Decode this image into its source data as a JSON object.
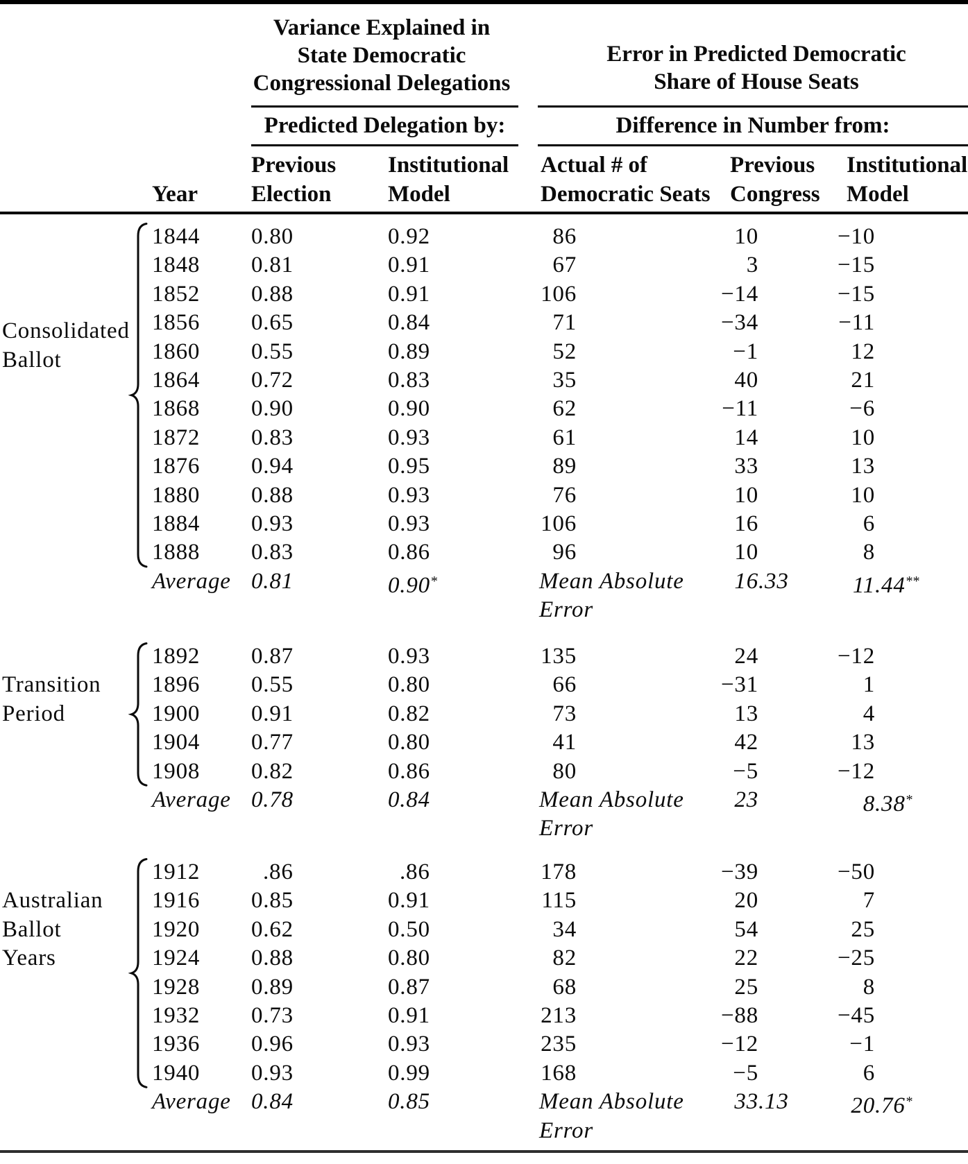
{
  "page": {
    "background": "#ffffff",
    "text_color": "#0b0b0b",
    "rule_color": "#000000"
  },
  "table": {
    "spanners": {
      "left": {
        "lines": [
          "Variance Explained in",
          "State Democratic",
          "Congressional Delegations"
        ],
        "sub": "Predicted Delegation by:"
      },
      "right": {
        "lines": [
          "Error in Predicted Democratic",
          "Share of House Seats"
        ],
        "sub": "Difference in Number from:"
      }
    },
    "columns": {
      "year": "Year",
      "prev_election": [
        "Previous",
        "Election"
      ],
      "inst_model": [
        "Institutional",
        "Model"
      ],
      "actual_seats": [
        "Actual # of",
        "Democratic Seats"
      ],
      "prev_congress": [
        "Previous",
        "Congress"
      ],
      "inst_model_err": [
        "Institutional",
        "Model"
      ]
    },
    "sections": [
      {
        "label_lines": [
          "Consolidated",
          "Ballot"
        ],
        "rows": [
          {
            "year": "1844",
            "pe": "0.80",
            "im": "0.92",
            "seats": "86",
            "pc": "10",
            "ie": "−10"
          },
          {
            "year": "1848",
            "pe": "0.81",
            "im": "0.91",
            "seats": "67",
            "pc": "3",
            "ie": "−15"
          },
          {
            "year": "1852",
            "pe": "0.88",
            "im": "0.91",
            "seats": "106",
            "pc": "−14",
            "ie": "−15"
          },
          {
            "year": "1856",
            "pe": "0.65",
            "im": "0.84",
            "seats": "71",
            "pc": "−34",
            "ie": "−11"
          },
          {
            "year": "1860",
            "pe": "0.55",
            "im": "0.89",
            "seats": "52",
            "pc": "−1",
            "ie": "12"
          },
          {
            "year": "1864",
            "pe": "0.72",
            "im": "0.83",
            "seats": "35",
            "pc": "40",
            "ie": "21"
          },
          {
            "year": "1868",
            "pe": "0.90",
            "im": "0.90",
            "seats": "62",
            "pc": "−11",
            "ie": "−6"
          },
          {
            "year": "1872",
            "pe": "0.83",
            "im": "0.93",
            "seats": "61",
            "pc": "14",
            "ie": "10"
          },
          {
            "year": "1876",
            "pe": "0.94",
            "im": "0.95",
            "seats": "89",
            "pc": "33",
            "ie": "13"
          },
          {
            "year": "1880",
            "pe": "0.88",
            "im": "0.93",
            "seats": "76",
            "pc": "10",
            "ie": "10"
          },
          {
            "year": "1884",
            "pe": "0.93",
            "im": "0.93",
            "seats": "106",
            "pc": "16",
            "ie": "6"
          },
          {
            "year": "1888",
            "pe": "0.83",
            "im": "0.86",
            "seats": "96",
            "pc": "10",
            "ie": "8"
          }
        ],
        "summary": {
          "avg_label": "Average",
          "avg_pe": "0.81",
          "avg_im": "0.90",
          "avg_im_sup": "*",
          "mae_label_lines": [
            "Mean Absolute",
            "Error"
          ],
          "mae_pc": "16.33",
          "mae_ie": "11.44",
          "mae_ie_sup": "**"
        }
      },
      {
        "label_lines": [
          "Transition",
          "Period"
        ],
        "rows": [
          {
            "year": "1892",
            "pe": "0.87",
            "im": "0.93",
            "seats": "135",
            "pc": "24",
            "ie": "−12"
          },
          {
            "year": "1896",
            "pe": "0.55",
            "im": "0.80",
            "seats": "66",
            "pc": "−31",
            "ie": "1"
          },
          {
            "year": "1900",
            "pe": "0.91",
            "im": "0.82",
            "seats": "73",
            "pc": "13",
            "ie": "4"
          },
          {
            "year": "1904",
            "pe": "0.77",
            "im": "0.80",
            "seats": "41",
            "pc": "42",
            "ie": "13"
          },
          {
            "year": "1908",
            "pe": "0.82",
            "im": "0.86",
            "seats": "80",
            "pc": "−5",
            "ie": "−12"
          }
        ],
        "summary": {
          "avg_label": "Average",
          "avg_pe": "0.78",
          "avg_im": "0.84",
          "avg_im_sup": "",
          "mae_label_lines": [
            "Mean Absolute",
            "Error"
          ],
          "mae_pc": "23",
          "mae_ie": "8.38",
          "mae_ie_sup": "*"
        }
      },
      {
        "label_lines": [
          "Australian",
          "Ballot",
          "Years"
        ],
        "rows": [
          {
            "year": "1912",
            "pe": ".86",
            "im": ".86",
            "seats": "178",
            "pc": "−39",
            "ie": "−50"
          },
          {
            "year": "1916",
            "pe": "0.85",
            "im": "0.91",
            "seats": "115",
            "pc": "20",
            "ie": "7"
          },
          {
            "year": "1920",
            "pe": "0.62",
            "im": "0.50",
            "seats": "34",
            "pc": "54",
            "ie": "25"
          },
          {
            "year": "1924",
            "pe": "0.88",
            "im": "0.80",
            "seats": "82",
            "pc": "22",
            "ie": "−25"
          },
          {
            "year": "1928",
            "pe": "0.89",
            "im": "0.87",
            "seats": "68",
            "pc": "25",
            "ie": "8"
          },
          {
            "year": "1932",
            "pe": "0.73",
            "im": "0.91",
            "seats": "213",
            "pc": "−88",
            "ie": "−45"
          },
          {
            "year": "1936",
            "pe": "0.96",
            "im": "0.93",
            "seats": "235",
            "pc": "−12",
            "ie": "−1"
          },
          {
            "year": "1940",
            "pe": "0.93",
            "im": "0.99",
            "seats": "168",
            "pc": "−5",
            "ie": "6"
          }
        ],
        "summary": {
          "avg_label": "Average",
          "avg_pe": "0.84",
          "avg_im": "0.85",
          "avg_im_sup": "",
          "mae_label_lines": [
            "Mean Absolute",
            "Error"
          ],
          "mae_pc": "33.13",
          "mae_ie": "20.76",
          "mae_ie_sup": "*"
        }
      }
    ]
  }
}
